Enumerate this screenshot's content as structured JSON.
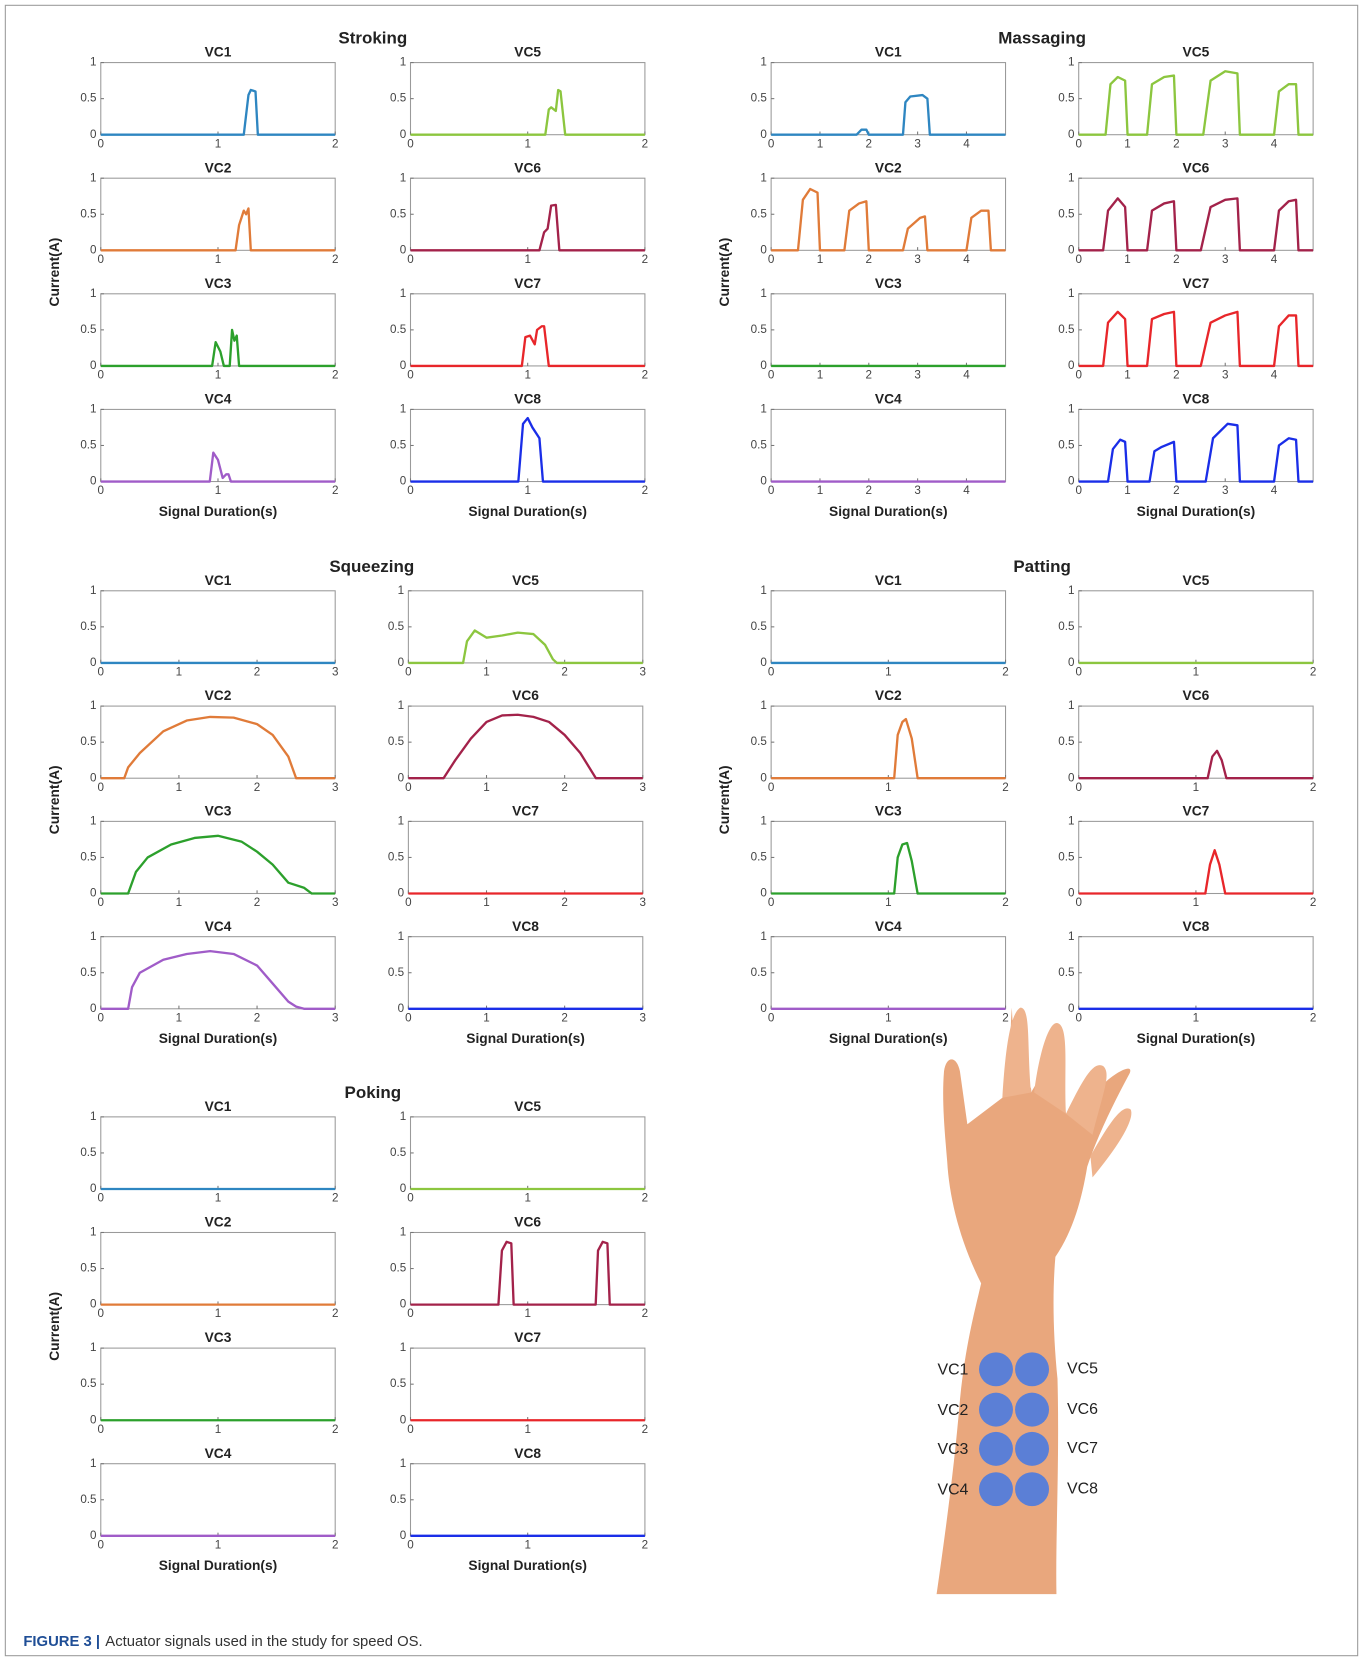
{
  "chart_data": [
    {
      "type": "line",
      "title": "Stroking",
      "ylabel": "Current(A)",
      "xlabel": "Signal Duration(s)",
      "xlim": [
        0,
        2
      ],
      "xticks": [
        0,
        1,
        2
      ],
      "ylim": [
        0,
        1
      ],
      "yticks": [
        0,
        0.5,
        1
      ],
      "panels": [
        {
          "title": "VC1",
          "color": "#2e86c1",
          "x": [
            0,
            1.22,
            1.26,
            1.28,
            1.32,
            1.34,
            2
          ],
          "values": [
            0,
            0,
            0.55,
            0.62,
            0.6,
            0,
            0
          ]
        },
        {
          "title": "VC2",
          "color": "#e07b39",
          "x": [
            0,
            1.15,
            1.18,
            1.2,
            1.22,
            1.24,
            1.26,
            1.28,
            2
          ],
          "values": [
            0,
            0,
            0.35,
            0.45,
            0.55,
            0.5,
            0.58,
            0,
            0
          ]
        },
        {
          "title": "VC3",
          "color": "#2ca02c",
          "x": [
            0,
            0.95,
            0.98,
            1.02,
            1.05,
            1.1,
            1.12,
            1.14,
            1.16,
            1.18,
            2
          ],
          "values": [
            0,
            0,
            0.33,
            0.2,
            0,
            0,
            0.5,
            0.35,
            0.42,
            0,
            0
          ]
        },
        {
          "title": "VC4",
          "color": "#a05cc8",
          "x": [
            0,
            0.93,
            0.96,
            1.0,
            1.04,
            1.07,
            1.09,
            1.11,
            2
          ],
          "values": [
            0,
            0,
            0.4,
            0.3,
            0.05,
            0.1,
            0.1,
            0,
            0
          ]
        },
        {
          "title": "VC5",
          "color": "#8cc63f",
          "x": [
            0,
            1.15,
            1.18,
            1.2,
            1.24,
            1.26,
            1.28,
            1.32,
            2
          ],
          "values": [
            0,
            0,
            0.35,
            0.38,
            0.33,
            0.62,
            0.6,
            0,
            0
          ]
        },
        {
          "title": "VC6",
          "color": "#a3224a",
          "x": [
            0,
            1.1,
            1.14,
            1.17,
            1.2,
            1.24,
            1.27,
            2
          ],
          "values": [
            0,
            0,
            0.25,
            0.3,
            0.62,
            0.63,
            0,
            0
          ]
        },
        {
          "title": "VC7",
          "color": "#e8262a",
          "x": [
            0,
            0.95,
            0.98,
            1.02,
            1.06,
            1.08,
            1.12,
            1.14,
            1.18,
            2
          ],
          "values": [
            0,
            0,
            0.4,
            0.42,
            0.3,
            0.5,
            0.55,
            0.55,
            0,
            0
          ]
        },
        {
          "title": "VC8",
          "color": "#1a2ee8",
          "x": [
            0,
            0.92,
            0.96,
            1.0,
            1.04,
            1.08,
            1.1,
            1.13,
            2
          ],
          "values": [
            0,
            0,
            0.8,
            0.88,
            0.75,
            0.65,
            0.6,
            0,
            0
          ]
        }
      ]
    },
    {
      "type": "line",
      "title": "Massaging",
      "ylabel": "Current(A)",
      "xlabel": "Signal Duration(s)",
      "xlim": [
        0,
        4.8
      ],
      "xticks": [
        0,
        1,
        2,
        3,
        4
      ],
      "ylim": [
        0,
        1
      ],
      "yticks": [
        0,
        0.5,
        1
      ],
      "panels": [
        {
          "title": "VC1",
          "color": "#2e86c1",
          "x": [
            0,
            1.75,
            1.85,
            1.95,
            2.0,
            2.7,
            2.75,
            2.85,
            3.1,
            3.2,
            3.25,
            4.8
          ],
          "values": [
            0,
            0,
            0.07,
            0.07,
            0,
            0,
            0.45,
            0.53,
            0.55,
            0.5,
            0,
            0
          ]
        },
        {
          "title": "VC2",
          "color": "#e07b39",
          "x": [
            0,
            0.55,
            0.65,
            0.8,
            0.95,
            1.0,
            1.5,
            1.6,
            1.8,
            1.95,
            2.0,
            2.7,
            2.8,
            3.05,
            3.15,
            3.2,
            4.0,
            4.1,
            4.3,
            4.45,
            4.5,
            4.8
          ],
          "values": [
            0,
            0,
            0.7,
            0.85,
            0.8,
            0,
            0,
            0.55,
            0.65,
            0.68,
            0,
            0,
            0.3,
            0.45,
            0.47,
            0,
            0,
            0.45,
            0.55,
            0.55,
            0,
            0
          ]
        },
        {
          "title": "VC3",
          "color": "#2ca02c",
          "x": [
            0,
            4.8
          ],
          "values": [
            0,
            0
          ]
        },
        {
          "title": "VC4",
          "color": "#a05cc8",
          "x": [
            0,
            4.8
          ],
          "values": [
            0,
            0
          ]
        },
        {
          "title": "VC5",
          "color": "#8cc63f",
          "x": [
            0,
            0.55,
            0.65,
            0.8,
            0.95,
            1.0,
            1.4,
            1.5,
            1.75,
            1.95,
            2.0,
            2.55,
            2.7,
            3.0,
            3.25,
            3.3,
            4.0,
            4.1,
            4.3,
            4.45,
            4.5,
            4.8
          ],
          "values": [
            0,
            0,
            0.7,
            0.8,
            0.75,
            0,
            0,
            0.7,
            0.8,
            0.82,
            0,
            0,
            0.75,
            0.88,
            0.85,
            0,
            0,
            0.6,
            0.7,
            0.7,
            0,
            0
          ]
        },
        {
          "title": "VC6",
          "color": "#a3224a",
          "x": [
            0,
            0.5,
            0.6,
            0.8,
            0.95,
            1.0,
            1.4,
            1.5,
            1.75,
            1.95,
            2.0,
            2.5,
            2.7,
            3.0,
            3.25,
            3.3,
            4.0,
            4.1,
            4.3,
            4.45,
            4.5,
            4.8
          ],
          "values": [
            0,
            0,
            0.55,
            0.72,
            0.6,
            0,
            0,
            0.55,
            0.65,
            0.68,
            0,
            0,
            0.6,
            0.7,
            0.72,
            0,
            0,
            0.55,
            0.68,
            0.7,
            0,
            0
          ]
        },
        {
          "title": "VC7",
          "color": "#e8262a",
          "x": [
            0,
            0.5,
            0.6,
            0.8,
            0.95,
            1.0,
            1.4,
            1.5,
            1.75,
            1.95,
            2.0,
            2.5,
            2.7,
            3.0,
            3.25,
            3.3,
            4.0,
            4.1,
            4.3,
            4.45,
            4.5,
            4.8
          ],
          "values": [
            0,
            0,
            0.6,
            0.75,
            0.65,
            0,
            0,
            0.65,
            0.72,
            0.75,
            0,
            0,
            0.6,
            0.7,
            0.75,
            0,
            0,
            0.55,
            0.7,
            0.7,
            0,
            0
          ]
        },
        {
          "title": "VC8",
          "color": "#1a2ee8",
          "x": [
            0,
            0.6,
            0.7,
            0.85,
            0.95,
            1.0,
            1.45,
            1.55,
            1.7,
            1.95,
            2.0,
            2.6,
            2.75,
            3.05,
            3.25,
            3.3,
            4.0,
            4.1,
            4.3,
            4.45,
            4.5,
            4.8
          ],
          "values": [
            0,
            0,
            0.45,
            0.58,
            0.55,
            0,
            0,
            0.42,
            0.48,
            0.55,
            0,
            0,
            0.6,
            0.8,
            0.78,
            0,
            0,
            0.5,
            0.6,
            0.58,
            0,
            0
          ]
        }
      ]
    },
    {
      "type": "line",
      "title": "Squeezing",
      "ylabel": "Current(A)",
      "xlabel": "Signal Duration(s)",
      "xlim": [
        0,
        3
      ],
      "xticks": [
        0,
        1,
        2,
        3
      ],
      "ylim": [
        0,
        1
      ],
      "yticks": [
        0,
        0.5,
        1
      ],
      "panels": [
        {
          "title": "VC1",
          "color": "#2e86c1",
          "x": [
            0,
            3
          ],
          "values": [
            0,
            0
          ]
        },
        {
          "title": "VC2",
          "color": "#e07b39",
          "x": [
            0,
            0.3,
            0.35,
            0.5,
            0.8,
            1.1,
            1.4,
            1.7,
            2.0,
            2.2,
            2.4,
            2.5,
            3
          ],
          "values": [
            0,
            0,
            0.15,
            0.35,
            0.65,
            0.8,
            0.85,
            0.84,
            0.75,
            0.6,
            0.3,
            0,
            0
          ]
        },
        {
          "title": "VC3",
          "color": "#2ca02c",
          "x": [
            0,
            0.35,
            0.45,
            0.6,
            0.9,
            1.2,
            1.5,
            1.8,
            2.0,
            2.2,
            2.4,
            2.6,
            2.7,
            3
          ],
          "values": [
            0,
            0,
            0.3,
            0.5,
            0.68,
            0.77,
            0.8,
            0.72,
            0.58,
            0.4,
            0.15,
            0.08,
            0,
            0
          ]
        },
        {
          "title": "VC4",
          "color": "#a05cc8",
          "x": [
            0,
            0.35,
            0.4,
            0.5,
            0.8,
            1.1,
            1.4,
            1.7,
            2.0,
            2.2,
            2.4,
            2.5,
            2.6,
            3
          ],
          "values": [
            0,
            0,
            0.3,
            0.5,
            0.68,
            0.76,
            0.8,
            0.76,
            0.6,
            0.35,
            0.1,
            0.03,
            0,
            0
          ]
        },
        {
          "title": "VC5",
          "color": "#8cc63f",
          "x": [
            0,
            0.7,
            0.75,
            0.85,
            1.0,
            1.2,
            1.4,
            1.6,
            1.75,
            1.85,
            1.9,
            3
          ],
          "values": [
            0,
            0,
            0.3,
            0.45,
            0.35,
            0.38,
            0.42,
            0.4,
            0.25,
            0.05,
            0,
            0
          ]
        },
        {
          "title": "VC6",
          "color": "#a3224a",
          "x": [
            0,
            0.45,
            0.6,
            0.8,
            1.0,
            1.2,
            1.4,
            1.6,
            1.8,
            2.0,
            2.2,
            2.4,
            3
          ],
          "values": [
            0,
            0,
            0.25,
            0.55,
            0.78,
            0.87,
            0.88,
            0.85,
            0.78,
            0.6,
            0.35,
            0,
            0
          ]
        },
        {
          "title": "VC7",
          "color": "#e8262a",
          "x": [
            0,
            3
          ],
          "values": [
            0,
            0
          ]
        },
        {
          "title": "VC8",
          "color": "#1a2ee8",
          "x": [
            0,
            3
          ],
          "values": [
            0,
            0
          ]
        }
      ]
    },
    {
      "type": "line",
      "title": "Patting",
      "ylabel": "Current(A)",
      "xlabel": "Signal Duration(s)",
      "xlim": [
        0,
        2
      ],
      "xticks": [
        0,
        1,
        2
      ],
      "ylim": [
        0,
        1
      ],
      "yticks": [
        0,
        0.5,
        1
      ],
      "panels": [
        {
          "title": "VC1",
          "color": "#2e86c1",
          "x": [
            0,
            2
          ],
          "values": [
            0,
            0
          ]
        },
        {
          "title": "VC2",
          "color": "#e07b39",
          "x": [
            0,
            1.05,
            1.08,
            1.12,
            1.15,
            1.2,
            1.25,
            2
          ],
          "values": [
            0,
            0,
            0.6,
            0.78,
            0.82,
            0.55,
            0,
            0
          ]
        },
        {
          "title": "VC3",
          "color": "#2ca02c",
          "x": [
            0,
            1.05,
            1.08,
            1.12,
            1.16,
            1.2,
            1.25,
            2
          ],
          "values": [
            0,
            0,
            0.5,
            0.68,
            0.7,
            0.45,
            0,
            0
          ]
        },
        {
          "title": "VC4",
          "color": "#a05cc8",
          "x": [
            0,
            2
          ],
          "values": [
            0,
            0
          ]
        },
        {
          "title": "VC5",
          "color": "#8cc63f",
          "x": [
            0,
            2
          ],
          "values": [
            0,
            0
          ]
        },
        {
          "title": "VC6",
          "color": "#a3224a",
          "x": [
            0,
            1.1,
            1.14,
            1.18,
            1.22,
            1.26,
            2
          ],
          "values": [
            0,
            0,
            0.3,
            0.38,
            0.25,
            0,
            0
          ]
        },
        {
          "title": "VC7",
          "color": "#e8262a",
          "x": [
            0,
            1.08,
            1.12,
            1.16,
            1.2,
            1.25,
            2
          ],
          "values": [
            0,
            0,
            0.4,
            0.6,
            0.4,
            0,
            0
          ]
        },
        {
          "title": "VC8",
          "color": "#1a2ee8",
          "x": [
            0,
            2
          ],
          "values": [
            0,
            0
          ]
        }
      ]
    },
    {
      "type": "line",
      "title": "Poking",
      "ylabel": "Current(A)",
      "xlabel": "Signal Duration(s)",
      "xlim": [
        0,
        2
      ],
      "xticks": [
        0,
        1,
        2
      ],
      "ylim": [
        0,
        1
      ],
      "yticks": [
        0,
        0.5,
        1
      ],
      "panels": [
        {
          "title": "VC1",
          "color": "#2e86c1",
          "x": [
            0,
            2
          ],
          "values": [
            0,
            0
          ]
        },
        {
          "title": "VC2",
          "color": "#e07b39",
          "x": [
            0,
            2
          ],
          "values": [
            0,
            0
          ]
        },
        {
          "title": "VC3",
          "color": "#2ca02c",
          "x": [
            0,
            2
          ],
          "values": [
            0,
            0
          ]
        },
        {
          "title": "VC4",
          "color": "#a05cc8",
          "x": [
            0,
            2
          ],
          "values": [
            0,
            0
          ]
        },
        {
          "title": "VC5",
          "color": "#8cc63f",
          "x": [
            0,
            2
          ],
          "values": [
            0,
            0
          ]
        },
        {
          "title": "VC6",
          "color": "#a3224a",
          "x": [
            0,
            0.75,
            0.78,
            0.82,
            0.86,
            0.88,
            1.58,
            1.6,
            1.64,
            1.68,
            1.7,
            2
          ],
          "values": [
            0,
            0,
            0.75,
            0.87,
            0.85,
            0,
            0,
            0.75,
            0.87,
            0.85,
            0,
            0
          ]
        },
        {
          "title": "VC7",
          "color": "#e8262a",
          "x": [
            0,
            2
          ],
          "values": [
            0,
            0
          ]
        },
        {
          "title": "VC8",
          "color": "#1a2ee8",
          "x": [
            0,
            2
          ],
          "values": [
            0,
            0
          ]
        }
      ]
    }
  ],
  "diagram": {
    "labels": [
      "VC1",
      "VC2",
      "VC3",
      "VC4",
      "VC5",
      "VC6",
      "VC7",
      "VC8"
    ]
  },
  "caption": {
    "label": "FIGURE 3 |",
    "text": "Actuator signals used in the study for speed OS."
  }
}
